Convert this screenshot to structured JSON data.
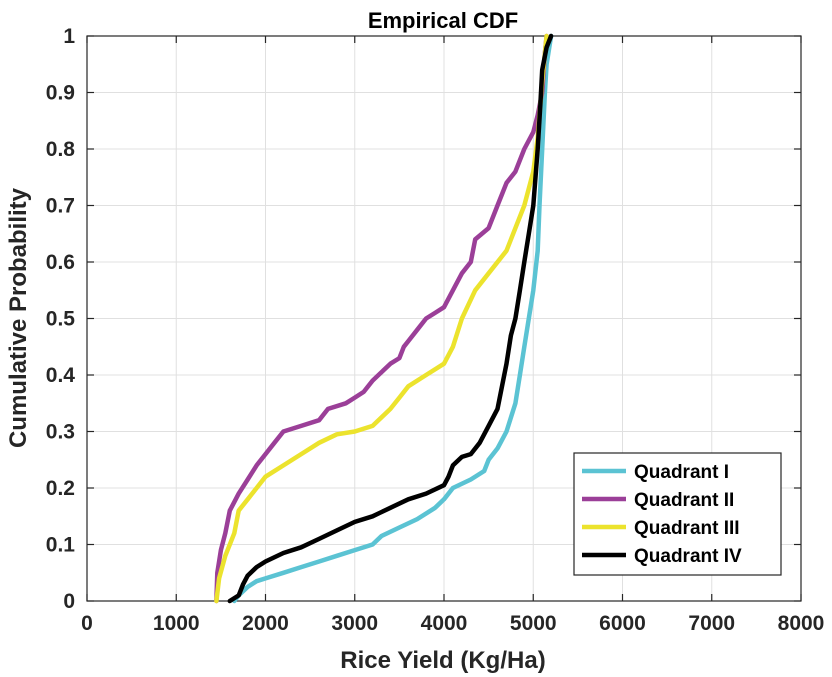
{
  "chart_data": {
    "type": "line",
    "title": "Empirical CDF",
    "xlabel": "Rice Yield (Kg/Ha)",
    "ylabel": "Cumulative Probability",
    "xlim": [
      0,
      8000
    ],
    "ylim": [
      0,
      1
    ],
    "xticks": [
      "0",
      "1000",
      "2000",
      "3000",
      "4000",
      "5000",
      "6000",
      "7000",
      "8000"
    ],
    "yticks": [
      "0",
      "0.1",
      "0.2",
      "0.3",
      "0.4",
      "0.5",
      "0.6",
      "0.7",
      "0.8",
      "0.9",
      "1"
    ],
    "grid": true,
    "legend_position": "bottom-right",
    "series": [
      {
        "name": "Quadrant I",
        "color": "#5bc3d3",
        "points": [
          [
            1650,
            0
          ],
          [
            1700,
            0.01
          ],
          [
            1800,
            0.025
          ],
          [
            1900,
            0.035
          ],
          [
            2000,
            0.04
          ],
          [
            2200,
            0.05
          ],
          [
            2400,
            0.06
          ],
          [
            2600,
            0.07
          ],
          [
            2800,
            0.08
          ],
          [
            3000,
            0.09
          ],
          [
            3200,
            0.1
          ],
          [
            3300,
            0.115
          ],
          [
            3500,
            0.13
          ],
          [
            3700,
            0.145
          ],
          [
            3900,
            0.165
          ],
          [
            4000,
            0.18
          ],
          [
            4100,
            0.2
          ],
          [
            4300,
            0.215
          ],
          [
            4450,
            0.23
          ],
          [
            4500,
            0.25
          ],
          [
            4600,
            0.27
          ],
          [
            4700,
            0.3
          ],
          [
            4800,
            0.35
          ],
          [
            4850,
            0.4
          ],
          [
            4900,
            0.45
          ],
          [
            4950,
            0.5
          ],
          [
            5000,
            0.55
          ],
          [
            5050,
            0.62
          ],
          [
            5070,
            0.7
          ],
          [
            5100,
            0.8
          ],
          [
            5130,
            0.9
          ],
          [
            5150,
            0.95
          ],
          [
            5200,
            1.0
          ]
        ]
      },
      {
        "name": "Quadrant II",
        "color": "#9b3f98",
        "points": [
          [
            1450,
            0
          ],
          [
            1460,
            0.05
          ],
          [
            1500,
            0.09
          ],
          [
            1550,
            0.12
          ],
          [
            1600,
            0.16
          ],
          [
            1700,
            0.19
          ],
          [
            1800,
            0.215
          ],
          [
            1900,
            0.24
          ],
          [
            2000,
            0.26
          ],
          [
            2100,
            0.28
          ],
          [
            2200,
            0.3
          ],
          [
            2400,
            0.31
          ],
          [
            2600,
            0.32
          ],
          [
            2700,
            0.34
          ],
          [
            2900,
            0.35
          ],
          [
            3000,
            0.36
          ],
          [
            3100,
            0.37
          ],
          [
            3200,
            0.39
          ],
          [
            3400,
            0.42
          ],
          [
            3500,
            0.43
          ],
          [
            3550,
            0.45
          ],
          [
            3600,
            0.46
          ],
          [
            3700,
            0.48
          ],
          [
            3800,
            0.5
          ],
          [
            3900,
            0.51
          ],
          [
            4000,
            0.52
          ],
          [
            4100,
            0.55
          ],
          [
            4200,
            0.58
          ],
          [
            4300,
            0.6
          ],
          [
            4350,
            0.64
          ],
          [
            4500,
            0.66
          ],
          [
            4600,
            0.7
          ],
          [
            4700,
            0.74
          ],
          [
            4800,
            0.76
          ],
          [
            4900,
            0.8
          ],
          [
            5000,
            0.83
          ],
          [
            5050,
            0.86
          ],
          [
            5100,
            0.9
          ],
          [
            5130,
            0.97
          ],
          [
            5150,
            1.0
          ]
        ]
      },
      {
        "name": "Quadrant III",
        "color": "#ece32d",
        "points": [
          [
            1450,
            0
          ],
          [
            1480,
            0.04
          ],
          [
            1550,
            0.08
          ],
          [
            1650,
            0.12
          ],
          [
            1700,
            0.16
          ],
          [
            1800,
            0.18
          ],
          [
            1900,
            0.2
          ],
          [
            2000,
            0.22
          ],
          [
            2200,
            0.24
          ],
          [
            2400,
            0.26
          ],
          [
            2600,
            0.28
          ],
          [
            2800,
            0.295
          ],
          [
            3000,
            0.3
          ],
          [
            3200,
            0.31
          ],
          [
            3400,
            0.34
          ],
          [
            3500,
            0.36
          ],
          [
            3600,
            0.38
          ],
          [
            3800,
            0.4
          ],
          [
            4000,
            0.42
          ],
          [
            4100,
            0.45
          ],
          [
            4200,
            0.5
          ],
          [
            4350,
            0.55
          ],
          [
            4500,
            0.58
          ],
          [
            4700,
            0.62
          ],
          [
            4800,
            0.66
          ],
          [
            4900,
            0.7
          ],
          [
            5000,
            0.76
          ],
          [
            5050,
            0.82
          ],
          [
            5080,
            0.88
          ],
          [
            5100,
            0.92
          ],
          [
            5150,
            1.0
          ]
        ]
      },
      {
        "name": "Quadrant IV",
        "color": "#000000",
        "points": [
          [
            1600,
            0
          ],
          [
            1700,
            0.01
          ],
          [
            1750,
            0.03
          ],
          [
            1800,
            0.045
          ],
          [
            1900,
            0.06
          ],
          [
            2000,
            0.07
          ],
          [
            2200,
            0.085
          ],
          [
            2400,
            0.095
          ],
          [
            2600,
            0.11
          ],
          [
            2800,
            0.125
          ],
          [
            3000,
            0.14
          ],
          [
            3200,
            0.15
          ],
          [
            3400,
            0.165
          ],
          [
            3600,
            0.18
          ],
          [
            3800,
            0.19
          ],
          [
            4000,
            0.205
          ],
          [
            4050,
            0.22
          ],
          [
            4100,
            0.24
          ],
          [
            4200,
            0.255
          ],
          [
            4300,
            0.26
          ],
          [
            4400,
            0.28
          ],
          [
            4500,
            0.31
          ],
          [
            4600,
            0.34
          ],
          [
            4650,
            0.38
          ],
          [
            4700,
            0.42
          ],
          [
            4750,
            0.47
          ],
          [
            4800,
            0.5
          ],
          [
            4850,
            0.55
          ],
          [
            4900,
            0.6
          ],
          [
            4950,
            0.65
          ],
          [
            5000,
            0.7
          ],
          [
            5050,
            0.8
          ],
          [
            5080,
            0.88
          ],
          [
            5100,
            0.94
          ],
          [
            5150,
            0.98
          ],
          [
            5200,
            1.0
          ]
        ]
      }
    ]
  }
}
